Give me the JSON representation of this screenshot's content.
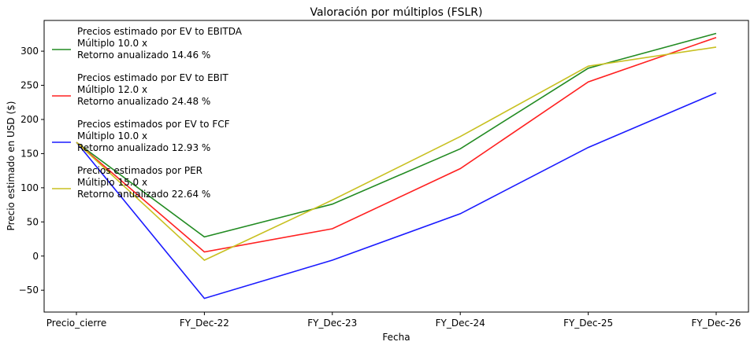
{
  "chart_data": {
    "type": "line",
    "title": "Valoración por múltiplos (FSLR)",
    "xlabel": "Fecha",
    "ylabel": "Precio estimado en USD ($)",
    "categories": [
      "Precio_cierre",
      "FY_Dec-22",
      "FY_Dec-23",
      "FY_Dec-24",
      "FY_Dec-25",
      "FY_Dec-26"
    ],
    "ylim": [
      -82,
      345
    ],
    "yticks": [
      -50,
      0,
      50,
      100,
      150,
      200,
      250,
      300
    ],
    "grid": false,
    "legend_position": "upper-left",
    "series": [
      {
        "name": "Precios estimado por EV to EBITDA",
        "legend_lines": [
          "Precios estimado por EV to EBITDA",
          "Múltiplo 10.0 x",
          "Retorno anualizado 14.46 %"
        ],
        "color": "#228b22",
        "values": [
          166.6,
          28,
          76,
          157,
          275,
          326
        ]
      },
      {
        "name": "Precios estimado por EV to EBIT",
        "legend_lines": [
          "Precios estimado por EV to EBIT",
          "Múltiplo 12.0 x",
          "Retorno anualizado 24.48 %"
        ],
        "color": "#ff2020",
        "values": [
          166.6,
          6,
          40,
          128,
          255,
          320
        ]
      },
      {
        "name": "Precios estimados por EV to FCF",
        "legend_lines": [
          "Precios estimados por EV to FCF",
          "Múltiplo 10.0 x",
          "Retorno anualizado 12.93 %"
        ],
        "color": "#1a1aff",
        "values": [
          166.6,
          -62,
          -6,
          62,
          159,
          239
        ]
      },
      {
        "name": "Precios estimados por PER",
        "legend_lines": [
          "Precios estimados por PER",
          "Múltiplo 15.0 x",
          "Retorno anualizado 22.64 %"
        ],
        "color": "#c8c020",
        "values": [
          166.6,
          -6,
          82,
          175,
          278,
          306
        ]
      }
    ]
  }
}
